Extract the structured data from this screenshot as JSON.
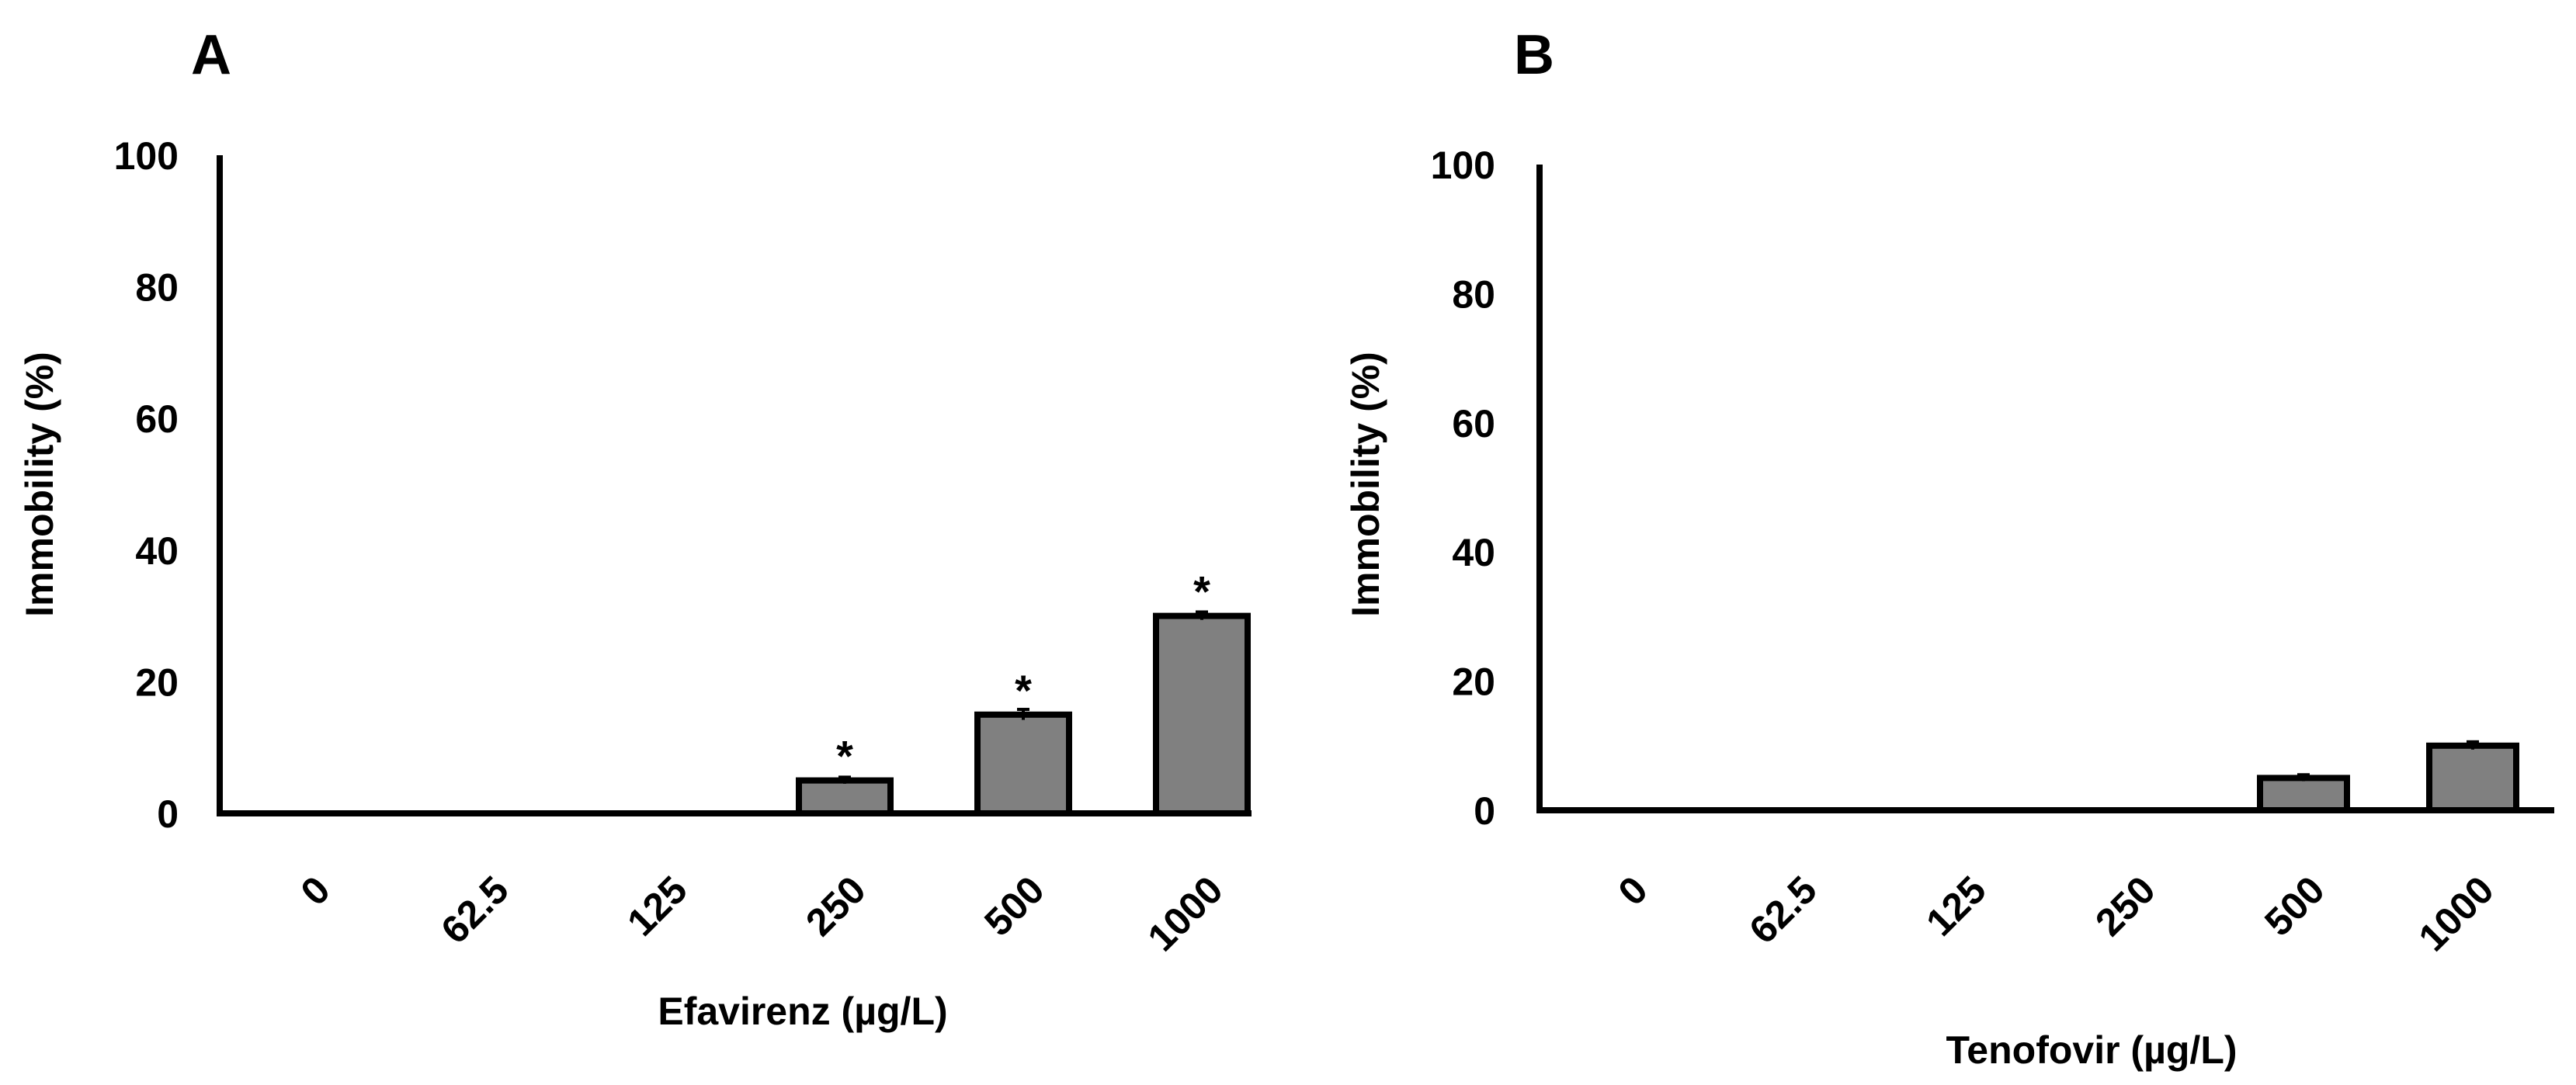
{
  "chart_data": [
    {
      "type": "bar",
      "panel": "A",
      "categories": [
        "0",
        "62.5",
        "125",
        "250",
        "500",
        "1000"
      ],
      "values": [
        0,
        0,
        0,
        5,
        15,
        30
      ],
      "errors": [
        0,
        0,
        0,
        0.5,
        0.8,
        0.6
      ],
      "significance": [
        "",
        "",
        "",
        "*",
        "*",
        "*"
      ],
      "xlabel": "Efavirenz (µg/L)",
      "ylabel": "Immobility (%)",
      "ylim": [
        0,
        100
      ],
      "yticks": [
        "0",
        "20",
        "40",
        "60",
        "80",
        "100"
      ],
      "bar_color": "#808080",
      "grid": false
    },
    {
      "type": "bar",
      "panel": "B",
      "categories": [
        "0",
        "62.5",
        "125",
        "250",
        "500",
        "1000"
      ],
      "values": [
        0,
        0,
        0,
        0,
        5,
        10
      ],
      "errors": [
        0,
        0,
        0,
        0,
        0.5,
        0.6
      ],
      "significance": [
        "",
        "",
        "",
        "",
        "",
        ""
      ],
      "xlabel": "Tenofovir (µg/L)",
      "ylabel": "Immobility (%)",
      "ylim": [
        0,
        100
      ],
      "yticks": [
        "0",
        "20",
        "40",
        "60",
        "80",
        "100"
      ],
      "bar_color": "#808080",
      "grid": false
    }
  ]
}
